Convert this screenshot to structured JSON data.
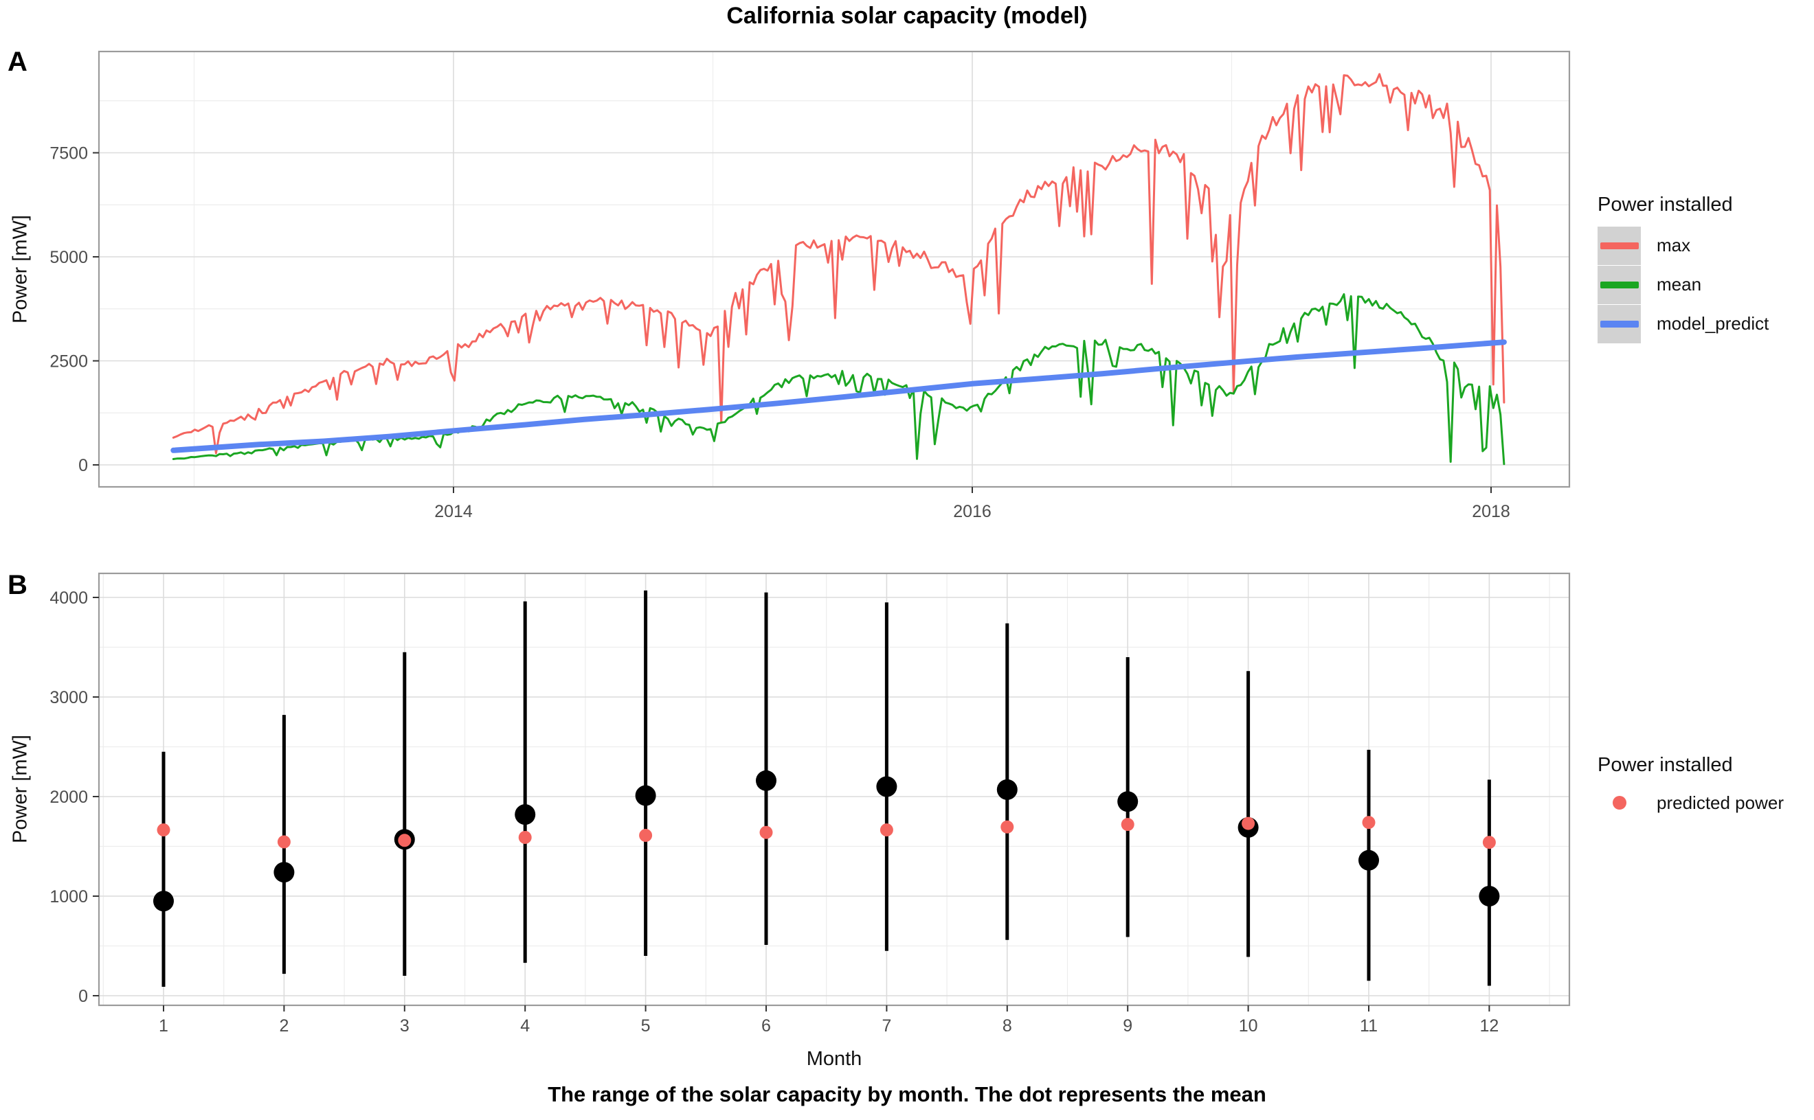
{
  "figure": {
    "title": "California solar capacity (model)",
    "caption": "The range of the solar capacity by month. The dot represents the mean",
    "panel_a_tag": "A",
    "panel_b_tag": "B"
  },
  "colors": {
    "max_red": "#F4655F",
    "mean_green": "#1BA622",
    "model_blue": "#5B85F2",
    "predicted_red": "#F4655F",
    "black": "#000000",
    "legend_key_bg": "#D2D2D2",
    "grid_major": "#DCDCDC",
    "grid_minor": "#EDEDED",
    "panel_border": "#9B9B9B",
    "tick_label": "#4D4D4D",
    "tick_mark": "#333333"
  },
  "chart_data": [
    {
      "id": "A",
      "type": "line",
      "title": "California solar capacity (model)",
      "ylabel": "Power [mW]",
      "legend_title": "Power installed",
      "legend_position": "right",
      "grid": true,
      "x_tick_labels": [
        "2014",
        "2016",
        "2018"
      ],
      "x_tick_values": [
        2014,
        2016,
        2018
      ],
      "x_minor_values": [
        2013,
        2015,
        2017
      ],
      "y_tick_labels": [
        "0",
        "2500",
        "5000",
        "7500"
      ],
      "y_tick_values": [
        0,
        2500,
        5000,
        7500
      ],
      "y_minor_values": [
        1250,
        3750,
        6250,
        8750
      ],
      "xlim": [
        2012.63,
        2018.3
      ],
      "ylim": [
        -530,
        9930
      ],
      "series": [
        {
          "name": "max",
          "color": "#F4655F",
          "style": "noisy-daily",
          "points": [
            [
              2012.92,
              700
            ],
            [
              2013.0,
              850
            ],
            [
              2013.08,
              1000
            ],
            [
              2013.17,
              1150
            ],
            [
              2013.25,
              1350
            ],
            [
              2013.33,
              1600
            ],
            [
              2013.42,
              1800
            ],
            [
              2013.5,
              2000
            ],
            [
              2013.58,
              2250
            ],
            [
              2013.67,
              2400
            ],
            [
              2013.75,
              2550
            ],
            [
              2013.83,
              2500
            ],
            [
              2013.92,
              2650
            ],
            [
              2014.0,
              2900
            ],
            [
              2014.08,
              3100
            ],
            [
              2014.17,
              3400
            ],
            [
              2014.25,
              3600
            ],
            [
              2014.33,
              3800
            ],
            [
              2014.42,
              3900
            ],
            [
              2014.5,
              3950
            ],
            [
              2014.58,
              4000
            ],
            [
              2014.67,
              3900
            ],
            [
              2014.75,
              3850
            ],
            [
              2014.83,
              3700
            ],
            [
              2014.92,
              3500
            ],
            [
              2015.0,
              3300
            ],
            [
              2015.08,
              4100
            ],
            [
              2015.17,
              4700
            ],
            [
              2015.25,
              5100
            ],
            [
              2015.33,
              5300
            ],
            [
              2015.42,
              5450
            ],
            [
              2015.5,
              5500
            ],
            [
              2015.58,
              5550
            ],
            [
              2015.67,
              5400
            ],
            [
              2015.75,
              5300
            ],
            [
              2015.83,
              5100
            ],
            [
              2015.92,
              4800
            ],
            [
              2016.0,
              4700
            ],
            [
              2016.08,
              5600
            ],
            [
              2016.17,
              6300
            ],
            [
              2016.25,
              6800
            ],
            [
              2016.33,
              7000
            ],
            [
              2016.42,
              7200
            ],
            [
              2016.5,
              7300
            ],
            [
              2016.58,
              7500
            ],
            [
              2016.67,
              7800
            ],
            [
              2016.75,
              7700
            ],
            [
              2016.83,
              7400
            ],
            [
              2016.92,
              6800
            ],
            [
              2017.0,
              6200
            ],
            [
              2017.08,
              7500
            ],
            [
              2017.17,
              8500
            ],
            [
              2017.25,
              9000
            ],
            [
              2017.33,
              9200
            ],
            [
              2017.42,
              9350
            ],
            [
              2017.5,
              9300
            ],
            [
              2017.58,
              9350
            ],
            [
              2017.67,
              9100
            ],
            [
              2017.75,
              8900
            ],
            [
              2017.83,
              8700
            ],
            [
              2017.92,
              7800
            ],
            [
              2018.0,
              7000
            ],
            [
              2018.03,
              6600
            ],
            [
              2018.05,
              1500
            ]
          ]
        },
        {
          "name": "mean",
          "color": "#1BA622",
          "style": "noisy-daily",
          "points": [
            [
              2012.92,
              150
            ],
            [
              2013.0,
              200
            ],
            [
              2013.08,
              250
            ],
            [
              2013.17,
              300
            ],
            [
              2013.25,
              360
            ],
            [
              2013.33,
              430
            ],
            [
              2013.42,
              500
            ],
            [
              2013.5,
              550
            ],
            [
              2013.58,
              600
            ],
            [
              2013.67,
              650
            ],
            [
              2013.75,
              680
            ],
            [
              2013.83,
              660
            ],
            [
              2013.92,
              710
            ],
            [
              2014.0,
              800
            ],
            [
              2014.08,
              1000
            ],
            [
              2014.17,
              1250
            ],
            [
              2014.25,
              1450
            ],
            [
              2014.33,
              1600
            ],
            [
              2014.42,
              1680
            ],
            [
              2014.5,
              1700
            ],
            [
              2014.58,
              1650
            ],
            [
              2014.67,
              1550
            ],
            [
              2014.75,
              1400
            ],
            [
              2014.83,
              1200
            ],
            [
              2014.92,
              1000
            ],
            [
              2015.0,
              900
            ],
            [
              2015.08,
              1300
            ],
            [
              2015.17,
              1700
            ],
            [
              2015.25,
              2000
            ],
            [
              2015.33,
              2150
            ],
            [
              2015.42,
              2200
            ],
            [
              2015.5,
              2250
            ],
            [
              2015.58,
              2200
            ],
            [
              2015.67,
              2100
            ],
            [
              2015.75,
              1950
            ],
            [
              2015.83,
              1750
            ],
            [
              2015.92,
              1500
            ],
            [
              2016.0,
              1400
            ],
            [
              2016.08,
              1900
            ],
            [
              2016.17,
              2400
            ],
            [
              2016.25,
              2750
            ],
            [
              2016.33,
              2950
            ],
            [
              2016.42,
              3000
            ],
            [
              2016.5,
              3000
            ],
            [
              2016.58,
              2950
            ],
            [
              2016.67,
              2900
            ],
            [
              2016.75,
              2700
            ],
            [
              2016.83,
              2400
            ],
            [
              2016.92,
              2000
            ],
            [
              2017.0,
              1750
            ],
            [
              2017.08,
              2400
            ],
            [
              2017.17,
              3100
            ],
            [
              2017.25,
              3600
            ],
            [
              2017.33,
              3900
            ],
            [
              2017.42,
              4050
            ],
            [
              2017.5,
              4100
            ],
            [
              2017.58,
              4000
            ],
            [
              2017.67,
              3700
            ],
            [
              2017.75,
              3200
            ],
            [
              2017.83,
              2600
            ],
            [
              2017.92,
              2100
            ],
            [
              2018.0,
              1900
            ],
            [
              2018.03,
              1800
            ],
            [
              2018.05,
              20
            ]
          ]
        },
        {
          "name": "model_predict",
          "color": "#5B85F2",
          "style": "smooth-thick",
          "points": [
            [
              2012.92,
              350
            ],
            [
              2013.25,
              490
            ],
            [
              2013.5,
              570
            ],
            [
              2013.75,
              680
            ],
            [
              2014.0,
              820
            ],
            [
              2014.25,
              950
            ],
            [
              2014.5,
              1090
            ],
            [
              2014.75,
              1210
            ],
            [
              2015.0,
              1340
            ],
            [
              2015.25,
              1480
            ],
            [
              2015.5,
              1630
            ],
            [
              2015.75,
              1790
            ],
            [
              2016.0,
              1950
            ],
            [
              2016.25,
              2070
            ],
            [
              2016.5,
              2190
            ],
            [
              2016.75,
              2330
            ],
            [
              2017.0,
              2460
            ],
            [
              2017.25,
              2590
            ],
            [
              2017.5,
              2700
            ],
            [
              2017.75,
              2810
            ],
            [
              2018.05,
              2950
            ]
          ]
        }
      ]
    },
    {
      "id": "B",
      "type": "scatter",
      "subtype": "range-dot",
      "xlabel": "Month",
      "ylabel": "Power [mW]",
      "legend_title": "Power installed",
      "legend_items": [
        {
          "label": "predicted power",
          "color": "#F4655F"
        }
      ],
      "grid": true,
      "x_tick_labels": [
        "1",
        "2",
        "3",
        "4",
        "5",
        "6",
        "7",
        "8",
        "9",
        "10",
        "11",
        "12"
      ],
      "y_tick_labels": [
        "0",
        "1000",
        "2000",
        "3000",
        "4000"
      ],
      "y_tick_values": [
        0,
        1000,
        2000,
        3000,
        4000
      ],
      "y_minor_values": [
        500,
        1500,
        2500,
        3500
      ],
      "xlim": [
        0.45,
        12.55
      ],
      "ylim": [
        -95,
        4240
      ],
      "months": [
        1,
        2,
        3,
        4,
        5,
        6,
        7,
        8,
        9,
        10,
        11,
        12
      ],
      "range_min": [
        90,
        220,
        200,
        330,
        400,
        510,
        450,
        560,
        590,
        390,
        150,
        100
      ],
      "range_max": [
        2450,
        2820,
        3450,
        3960,
        4070,
        4050,
        3950,
        3740,
        3400,
        3260,
        2470,
        2170
      ],
      "mean": [
        950,
        1240,
        1570,
        1820,
        2010,
        2160,
        2100,
        2070,
        1950,
        1690,
        1360,
        1000
      ],
      "predicted": [
        1665,
        1545,
        1560,
        1590,
        1610,
        1640,
        1665,
        1695,
        1720,
        1730,
        1740,
        1540
      ]
    }
  ]
}
